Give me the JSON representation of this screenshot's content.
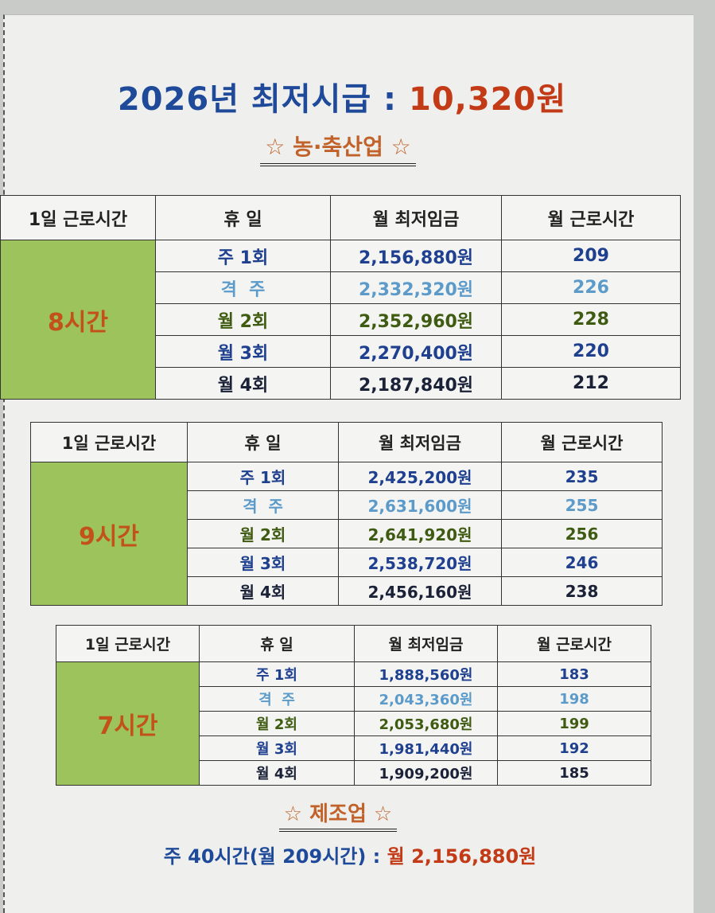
{
  "title": {
    "prefix": "2026년 최저시급 :",
    "amount": "10,320원"
  },
  "section_agri": "☆ 농·축산업 ☆",
  "headers": [
    "1일 근로시간",
    "휴  일",
    "월 최저임금",
    "월 근로시간"
  ],
  "colors": {
    "weekly": "#1f3f8f",
    "biweekly": "#5c9bc9",
    "twice": "#3f5b12",
    "thrice": "#1f3f8f",
    "four": "#1b2238",
    "group_bg": "#9dc45c",
    "group_text": "#c2521a",
    "title": "#1f4a9a",
    "accent": "#c23a16"
  },
  "tables": [
    {
      "group": "8시간",
      "rows": [
        {
          "holiday": "주 1회",
          "wage": "2,156,880원",
          "hours": "209",
          "tone": "weekly"
        },
        {
          "holiday": "격  주",
          "wage": "2,332,320원",
          "hours": "226",
          "tone": "biweekly"
        },
        {
          "holiday": "월 2회",
          "wage": "2,352,960원",
          "hours": "228",
          "tone": "twice"
        },
        {
          "holiday": "월 3회",
          "wage": "2,270,400원",
          "hours": "220",
          "tone": "thrice"
        },
        {
          "holiday": "월 4회",
          "wage": "2,187,840원",
          "hours": "212",
          "tone": "four"
        }
      ]
    },
    {
      "group": "9시간",
      "rows": [
        {
          "holiday": "주 1회",
          "wage": "2,425,200원",
          "hours": "235",
          "tone": "weekly"
        },
        {
          "holiday": "격  주",
          "wage": "2,631,600원",
          "hours": "255",
          "tone": "biweekly"
        },
        {
          "holiday": "월 2회",
          "wage": "2,641,920원",
          "hours": "256",
          "tone": "twice"
        },
        {
          "holiday": "월 3회",
          "wage": "2,538,720원",
          "hours": "246",
          "tone": "thrice"
        },
        {
          "holiday": "월 4회",
          "wage": "2,456,160원",
          "hours": "238",
          "tone": "four"
        }
      ]
    },
    {
      "group": "7시간",
      "rows": [
        {
          "holiday": "주 1회",
          "wage": "1,888,560원",
          "hours": "183",
          "tone": "weekly"
        },
        {
          "holiday": "격  주",
          "wage": "2,043,360원",
          "hours": "198",
          "tone": "biweekly"
        },
        {
          "holiday": "월 2회",
          "wage": "2,053,680원",
          "hours": "199",
          "tone": "twice"
        },
        {
          "holiday": "월 3회",
          "wage": "1,981,440원",
          "hours": "192",
          "tone": "thrice"
        },
        {
          "holiday": "월 4회",
          "wage": "1,909,200원",
          "hours": "185",
          "tone": "four"
        }
      ]
    }
  ],
  "section_mfg": "☆ 제조업 ☆",
  "mfg_line": {
    "prefix": "주 40시간(월 209시간) :",
    "amount": "월 2,156,880원"
  }
}
